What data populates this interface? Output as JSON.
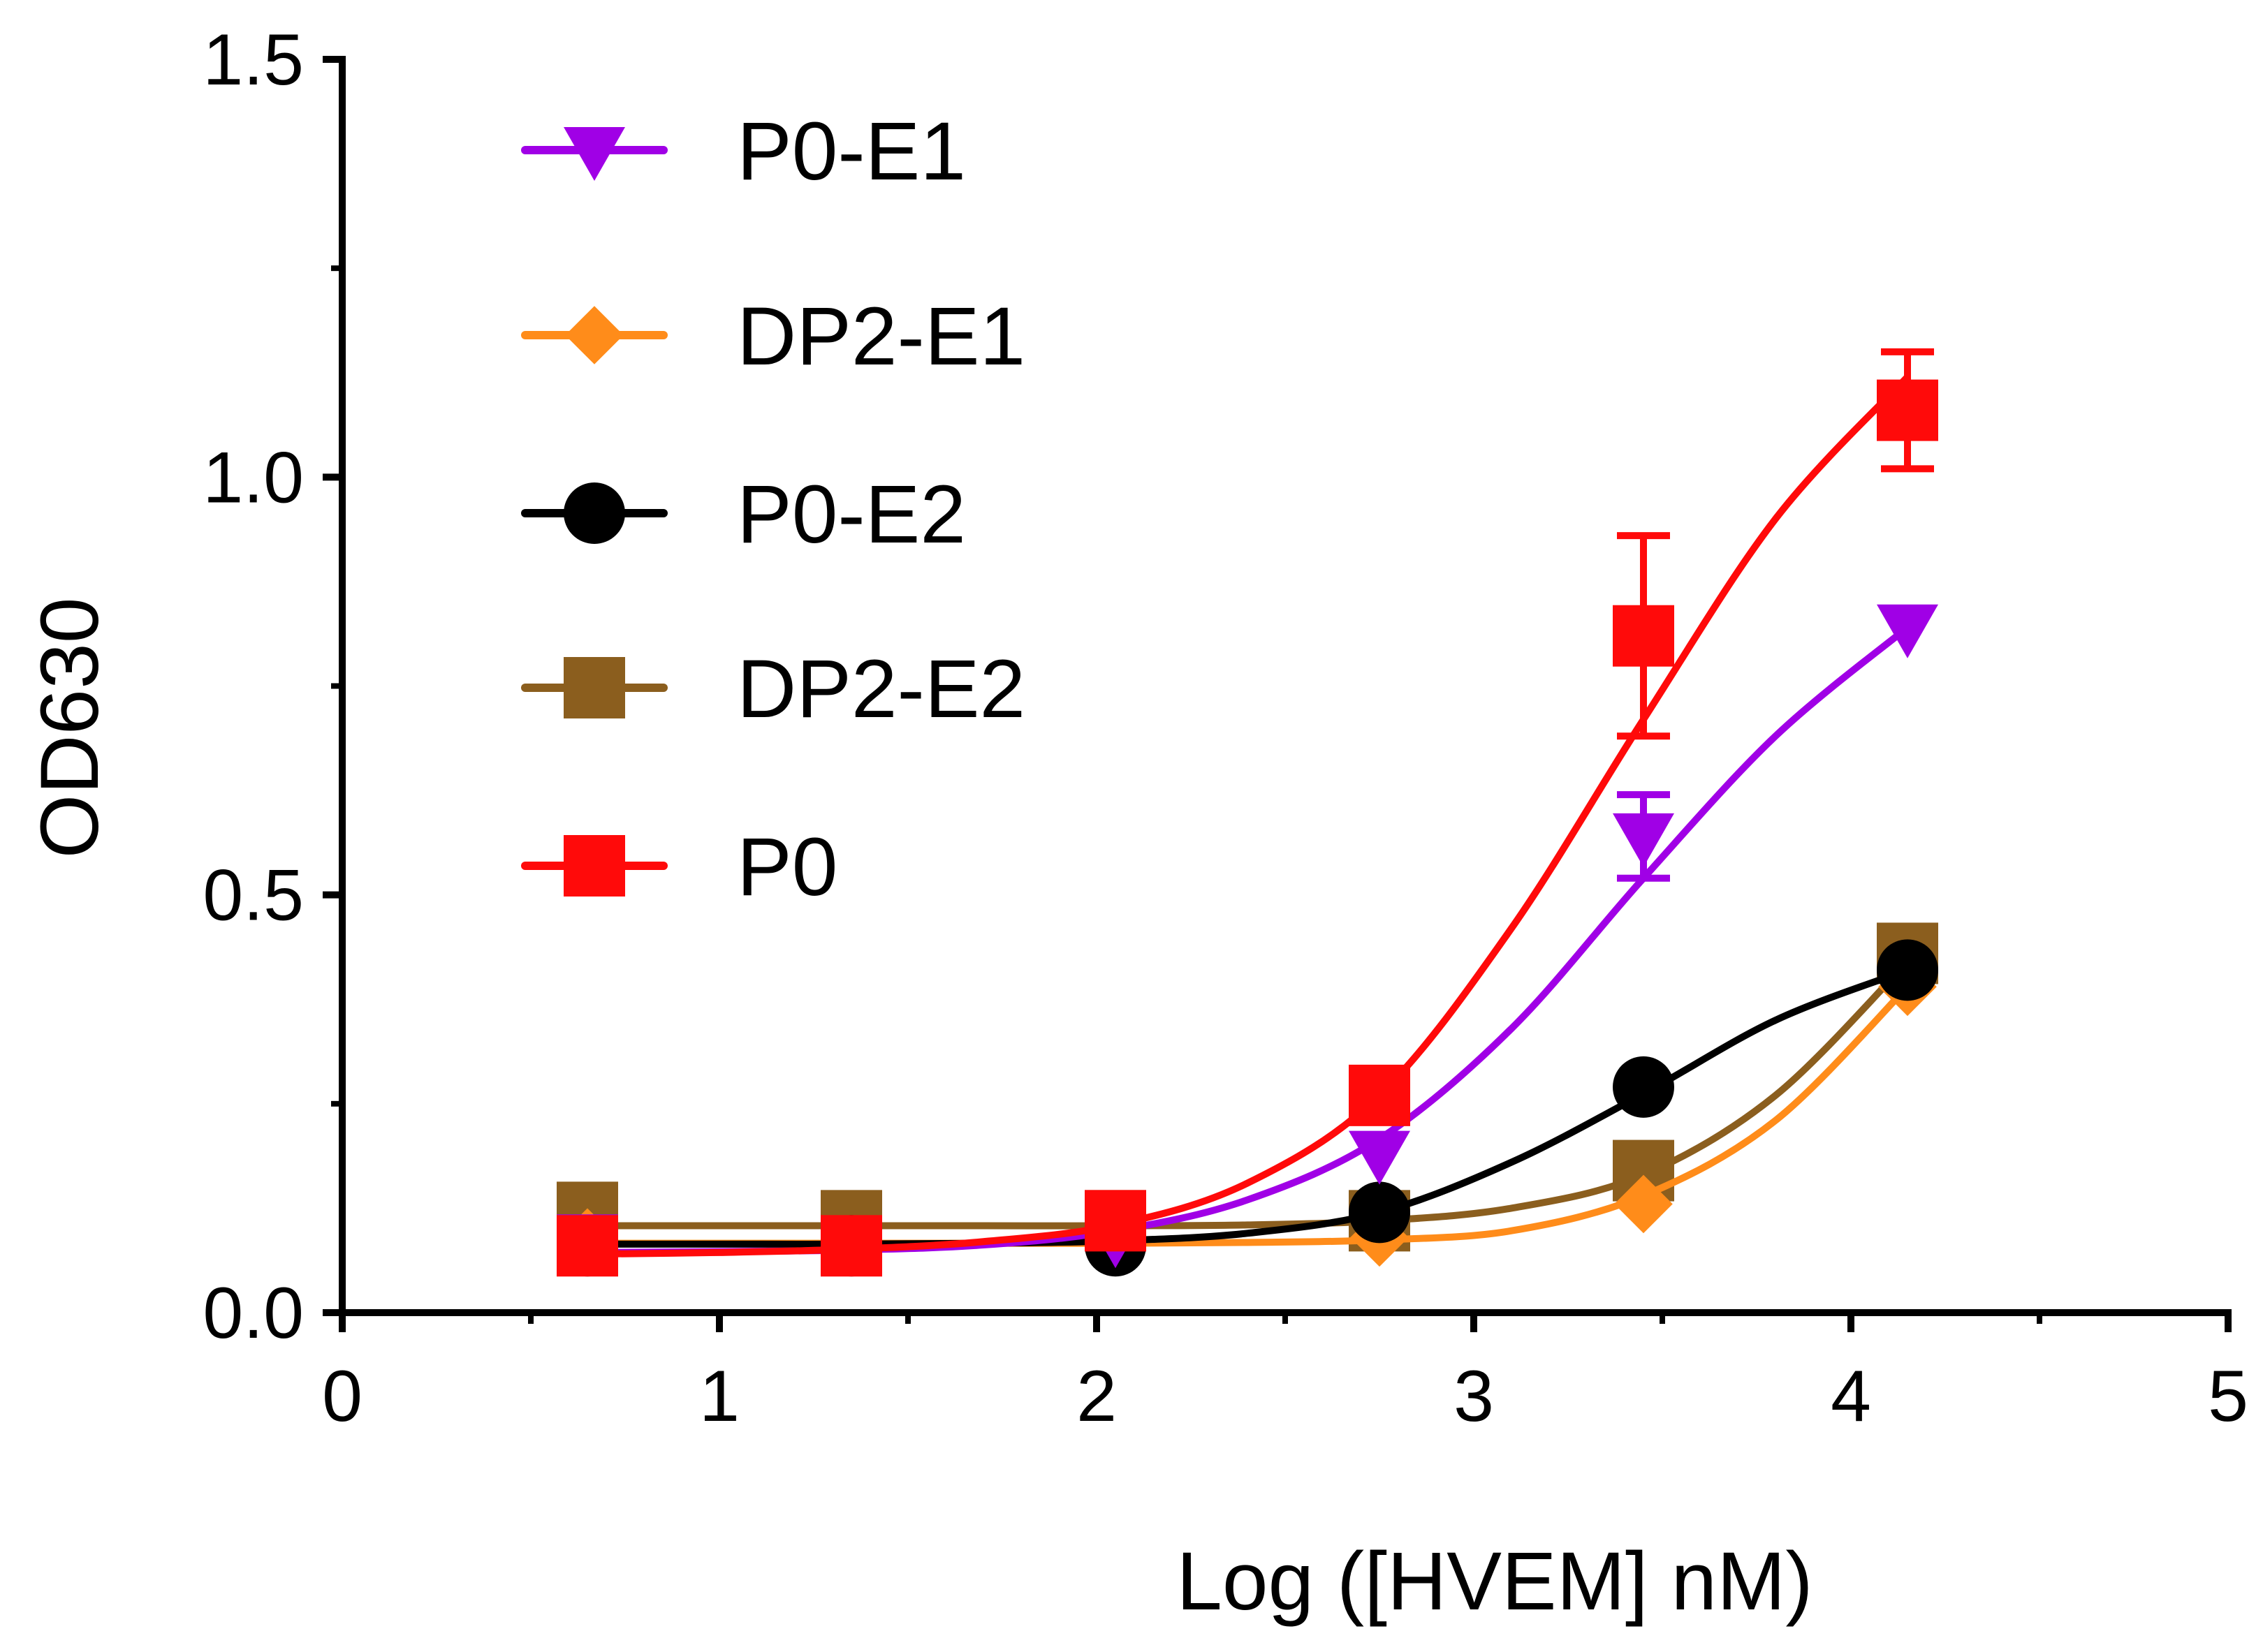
{
  "chart_data": {
    "type": "line",
    "xlabel": "Log ([HVEM] nM)",
    "ylabel": "OD630",
    "xlim": [
      0,
      5
    ],
    "ylim": [
      0,
      1.5
    ],
    "xticks": [
      "0",
      "1",
      "2",
      "3",
      "4",
      "5"
    ],
    "yticks": [
      "0.0",
      "0.5",
      "1.0",
      "1.5"
    ],
    "grid": false,
    "legend": "top-left",
    "series": [
      {
        "name": "P0-E1",
        "color": "#A000E6",
        "marker": "triangle-down",
        "x": [
          0.65,
          1.35,
          2.05,
          2.75,
          3.45,
          4.15
        ],
        "y": [
          0.09,
          0.08,
          0.09,
          0.19,
          0.57,
          0.82
        ],
        "error": [
          0,
          0,
          0,
          0,
          0.05,
          0
        ],
        "fit_x": [
          0.65,
          1.0,
          1.35,
          1.7,
          2.05,
          2.4,
          2.75,
          3.1,
          3.45,
          3.8,
          4.15
        ],
        "fit_y": [
          0.072,
          0.073,
          0.075,
          0.081,
          0.098,
          0.135,
          0.208,
          0.34,
          0.52,
          0.69,
          0.82
        ]
      },
      {
        "name": "DP2-E1",
        "color": "#FF8C1A",
        "marker": "diamond",
        "x": [
          0.65,
          1.35,
          2.05,
          2.75,
          3.45,
          4.15
        ],
        "y": [
          0.09,
          0.08,
          0.08,
          0.09,
          0.13,
          0.39
        ],
        "error": [
          0,
          0,
          0,
          0,
          0,
          0
        ],
        "fit_x": [
          0.65,
          1.0,
          1.35,
          1.7,
          2.05,
          2.4,
          2.75,
          3.1,
          3.45,
          3.8,
          4.15
        ],
        "fit_y": [
          0.083,
          0.083,
          0.083,
          0.083,
          0.083,
          0.084,
          0.087,
          0.098,
          0.14,
          0.23,
          0.39
        ]
      },
      {
        "name": "P0-E2",
        "color": "#000000",
        "marker": "circle",
        "x": [
          0.65,
          1.35,
          2.05,
          2.75,
          3.45,
          4.15
        ],
        "y": [
          0.08,
          0.08,
          0.08,
          0.12,
          0.27,
          0.41
        ],
        "error": [
          0,
          0,
          0,
          0,
          0,
          0
        ],
        "fit_x": [
          0.65,
          1.0,
          1.35,
          1.7,
          2.05,
          2.4,
          2.75,
          3.1,
          3.45,
          3.8,
          4.15
        ],
        "fit_y": [
          0.082,
          0.082,
          0.082,
          0.083,
          0.086,
          0.095,
          0.12,
          0.18,
          0.262,
          0.35,
          0.41
        ]
      },
      {
        "name": "DP2-E2",
        "color": "#8B5E1E",
        "marker": "square",
        "x": [
          0.65,
          1.35,
          2.05,
          2.75,
          3.45,
          4.15
        ],
        "y": [
          0.12,
          0.11,
          0.11,
          0.11,
          0.17,
          0.43
        ],
        "error": [
          0,
          0,
          0,
          0,
          0,
          0
        ],
        "fit_x": [
          0.65,
          1.0,
          1.35,
          1.7,
          2.05,
          2.4,
          2.75,
          3.1,
          3.45,
          3.8,
          4.15
        ],
        "fit_y": [
          0.104,
          0.104,
          0.104,
          0.104,
          0.104,
          0.105,
          0.11,
          0.125,
          0.165,
          0.26,
          0.42
        ]
      },
      {
        "name": "P0",
        "color": "#FF0A0A",
        "marker": "square",
        "x": [
          0.65,
          1.35,
          2.05,
          2.75,
          3.45,
          4.15
        ],
        "y": [
          0.08,
          0.08,
          0.11,
          0.26,
          0.81,
          1.08
        ],
        "error": [
          0,
          0,
          0,
          0,
          0.12,
          0.07
        ],
        "fit_x": [
          0.65,
          1.0,
          1.35,
          1.7,
          2.05,
          2.4,
          2.75,
          3.1,
          3.45,
          3.8,
          4.15
        ],
        "fit_y": [
          0.07,
          0.072,
          0.076,
          0.085,
          0.105,
          0.155,
          0.26,
          0.46,
          0.71,
          0.95,
          1.12
        ]
      }
    ]
  }
}
